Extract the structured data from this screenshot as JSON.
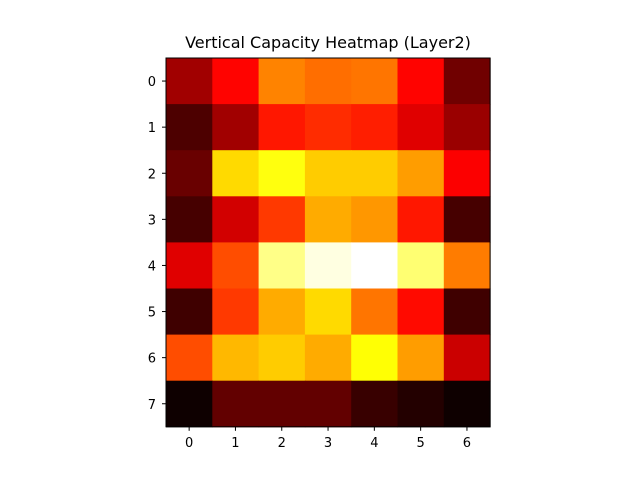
{
  "chart_data": {
    "type": "heatmap",
    "title": "Vertical Capacity Heatmap (Layer2)",
    "xlabel": "",
    "ylabel": "",
    "colormap": "hot",
    "x_ticks": [
      "0",
      "1",
      "2",
      "3",
      "4",
      "5",
      "6"
    ],
    "y_ticks": [
      "0",
      "1",
      "2",
      "3",
      "4",
      "5",
      "6",
      "7"
    ],
    "value_range": [
      0,
      1
    ],
    "values": [
      [
        0.23,
        0.37,
        0.56,
        0.53,
        0.54,
        0.37,
        0.16
      ],
      [
        0.11,
        0.23,
        0.4,
        0.43,
        0.41,
        0.32,
        0.22
      ],
      [
        0.15,
        0.69,
        0.76,
        0.67,
        0.67,
        0.6,
        0.36
      ],
      [
        0.1,
        0.3,
        0.45,
        0.62,
        0.59,
        0.4,
        0.1
      ],
      [
        0.32,
        0.48,
        0.88,
        0.97,
        1.0,
        0.86,
        0.55
      ],
      [
        0.09,
        0.45,
        0.62,
        0.69,
        0.54,
        0.38,
        0.09
      ],
      [
        0.48,
        0.64,
        0.67,
        0.62,
        0.75,
        0.6,
        0.29
      ],
      [
        0.02,
        0.14,
        0.14,
        0.14,
        0.08,
        0.05,
        0.02
      ]
    ]
  }
}
